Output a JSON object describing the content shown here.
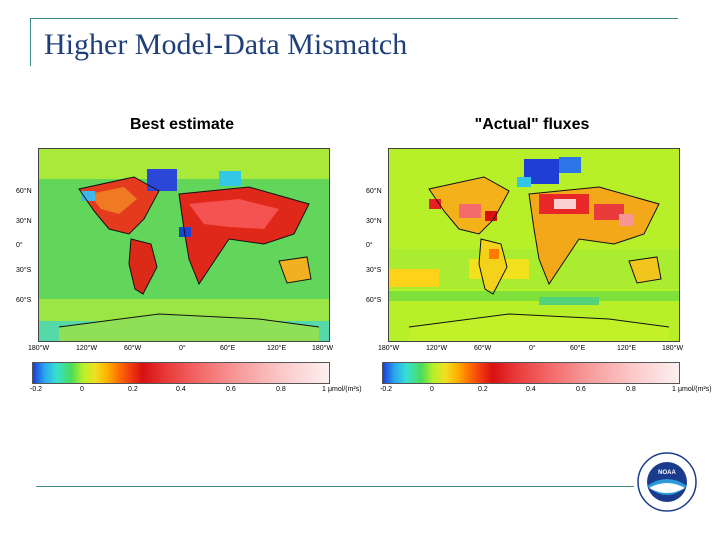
{
  "slide": {
    "title": "Higher Model-Data Mismatch"
  },
  "panels": [
    {
      "title": "Best estimate",
      "lat_labels": [
        "60°N",
        "30°N",
        "0°",
        "30°S",
        "60°S"
      ],
      "lon_labels": [
        "180°W",
        "120°W",
        "60°W",
        "0°",
        "60°E",
        "120°E",
        "180°W"
      ],
      "colorbar_ticks": [
        "-0.2",
        "0",
        "0.2",
        "0.4",
        "0.6",
        "0.8",
        "1"
      ],
      "colorbar_unit": "μmol/(m²s)"
    },
    {
      "title": "\"Actual\" fluxes",
      "lat_labels": [
        "60°N",
        "30°N",
        "0°",
        "30°S",
        "60°S"
      ],
      "lon_labels": [
        "180°W",
        "120°W",
        "60°W",
        "0°",
        "60°E",
        "120°E",
        "180°W"
      ],
      "colorbar_ticks": [
        "-0.2",
        "0",
        "0.2",
        "0.4",
        "0.6",
        "0.8",
        "1"
      ],
      "colorbar_unit": "μmol/(m²s)"
    }
  ],
  "colors": {
    "title_blue": "#1f3f7a",
    "rule_teal": "#3d8a8a",
    "map_ocean_green": "#5fd35f",
    "map_ocean_lime": "#b5ef2d",
    "flux_red": "#e02020",
    "flux_blue": "#1a3fd6"
  },
  "logo": {
    "name": "NOAA",
    "icon": "noaa-seal-icon"
  }
}
